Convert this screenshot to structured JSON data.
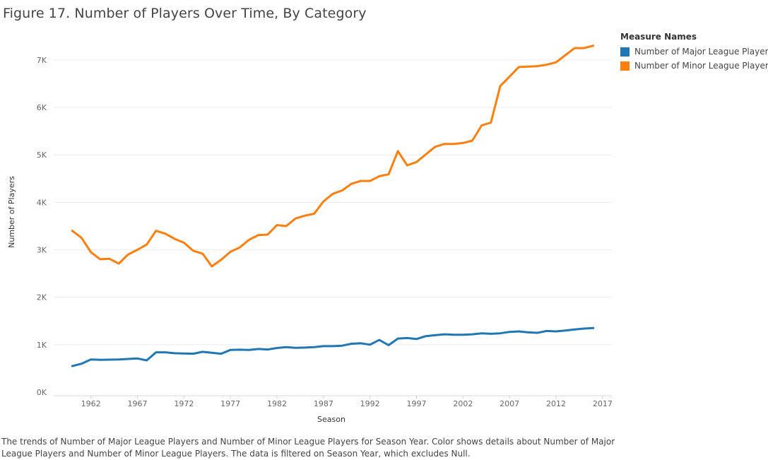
{
  "title": "Figure 17. Number of Players Over Time, By Category",
  "caption": "The trends of Number of Major League Players and Number of Minor League Players for Season Year.  Color shows details about Number of Major League Players and Number of Minor League Players. The data is filtered on Season Year, which excludes Null.",
  "legend": {
    "title": "Measure Names",
    "items": [
      {
        "label": "Number of Major League Players",
        "color": "#1f77b4"
      },
      {
        "label": "Number of Minor League Players",
        "color": "#ff7f0e"
      }
    ]
  },
  "chart_data": {
    "type": "line",
    "xlabel": "Season",
    "ylabel": "Number of Players",
    "xlim": [
      1958,
      2018
    ],
    "ylim": [
      0,
      7400
    ],
    "x_ticks": [
      1962,
      1967,
      1972,
      1977,
      1982,
      1987,
      1992,
      1997,
      2002,
      2007,
      2012,
      2017
    ],
    "x_tick_labels": [
      "1962",
      "1967",
      "1972",
      "1977",
      "1982",
      "1987",
      "1992",
      "1997",
      "2002",
      "2007",
      "2012",
      "2017"
    ],
    "y_ticks": [
      0,
      1000,
      2000,
      3000,
      4000,
      5000,
      6000,
      7000
    ],
    "y_tick_labels": [
      "0K",
      "1K",
      "2K",
      "3K",
      "4K",
      "5K",
      "6K",
      "7K"
    ],
    "grid": true,
    "legend_position": "top-right",
    "x": [
      1960,
      1961,
      1962,
      1963,
      1964,
      1965,
      1966,
      1967,
      1968,
      1969,
      1970,
      1971,
      1972,
      1973,
      1974,
      1975,
      1976,
      1977,
      1978,
      1979,
      1980,
      1981,
      1982,
      1983,
      1984,
      1985,
      1986,
      1987,
      1988,
      1989,
      1990,
      1991,
      1992,
      1993,
      1994,
      1995,
      1996,
      1997,
      1998,
      1999,
      2000,
      2001,
      2002,
      2003,
      2004,
      2005,
      2006,
      2007,
      2008,
      2009,
      2010,
      2011,
      2012,
      2013,
      2014,
      2015,
      2016
    ],
    "series": [
      {
        "name": "Number of Major League Players",
        "color": "#1f77b4",
        "values": [
          550,
          600,
          690,
          680,
          685,
          690,
          700,
          710,
          670,
          840,
          840,
          820,
          815,
          810,
          850,
          830,
          810,
          890,
          895,
          890,
          910,
          900,
          930,
          950,
          935,
          940,
          950,
          970,
          970,
          980,
          1020,
          1030,
          1000,
          1100,
          990,
          1130,
          1140,
          1120,
          1180,
          1200,
          1220,
          1210,
          1210,
          1220,
          1240,
          1230,
          1240,
          1270,
          1280,
          1260,
          1250,
          1290,
          1280,
          1300,
          1320,
          1340,
          1350
        ]
      },
      {
        "name": "Number of Minor League Players",
        "color": "#ff7f0e",
        "values": [
          3400,
          3250,
          2950,
          2800,
          2810,
          2710,
          2900,
          3000,
          3110,
          3400,
          3340,
          3230,
          3150,
          2980,
          2920,
          2650,
          2790,
          2960,
          3050,
          3210,
          3310,
          3320,
          3520,
          3500,
          3660,
          3720,
          3760,
          4020,
          4180,
          4250,
          4390,
          4450,
          4450,
          4550,
          4590,
          5080,
          4780,
          4850,
          5010,
          5170,
          5230,
          5230,
          5250,
          5300,
          5620,
          5680,
          6450,
          6650,
          6850,
          6860,
          6870,
          6900,
          6950,
          7100,
          7250,
          7250,
          7300
        ]
      }
    ]
  }
}
